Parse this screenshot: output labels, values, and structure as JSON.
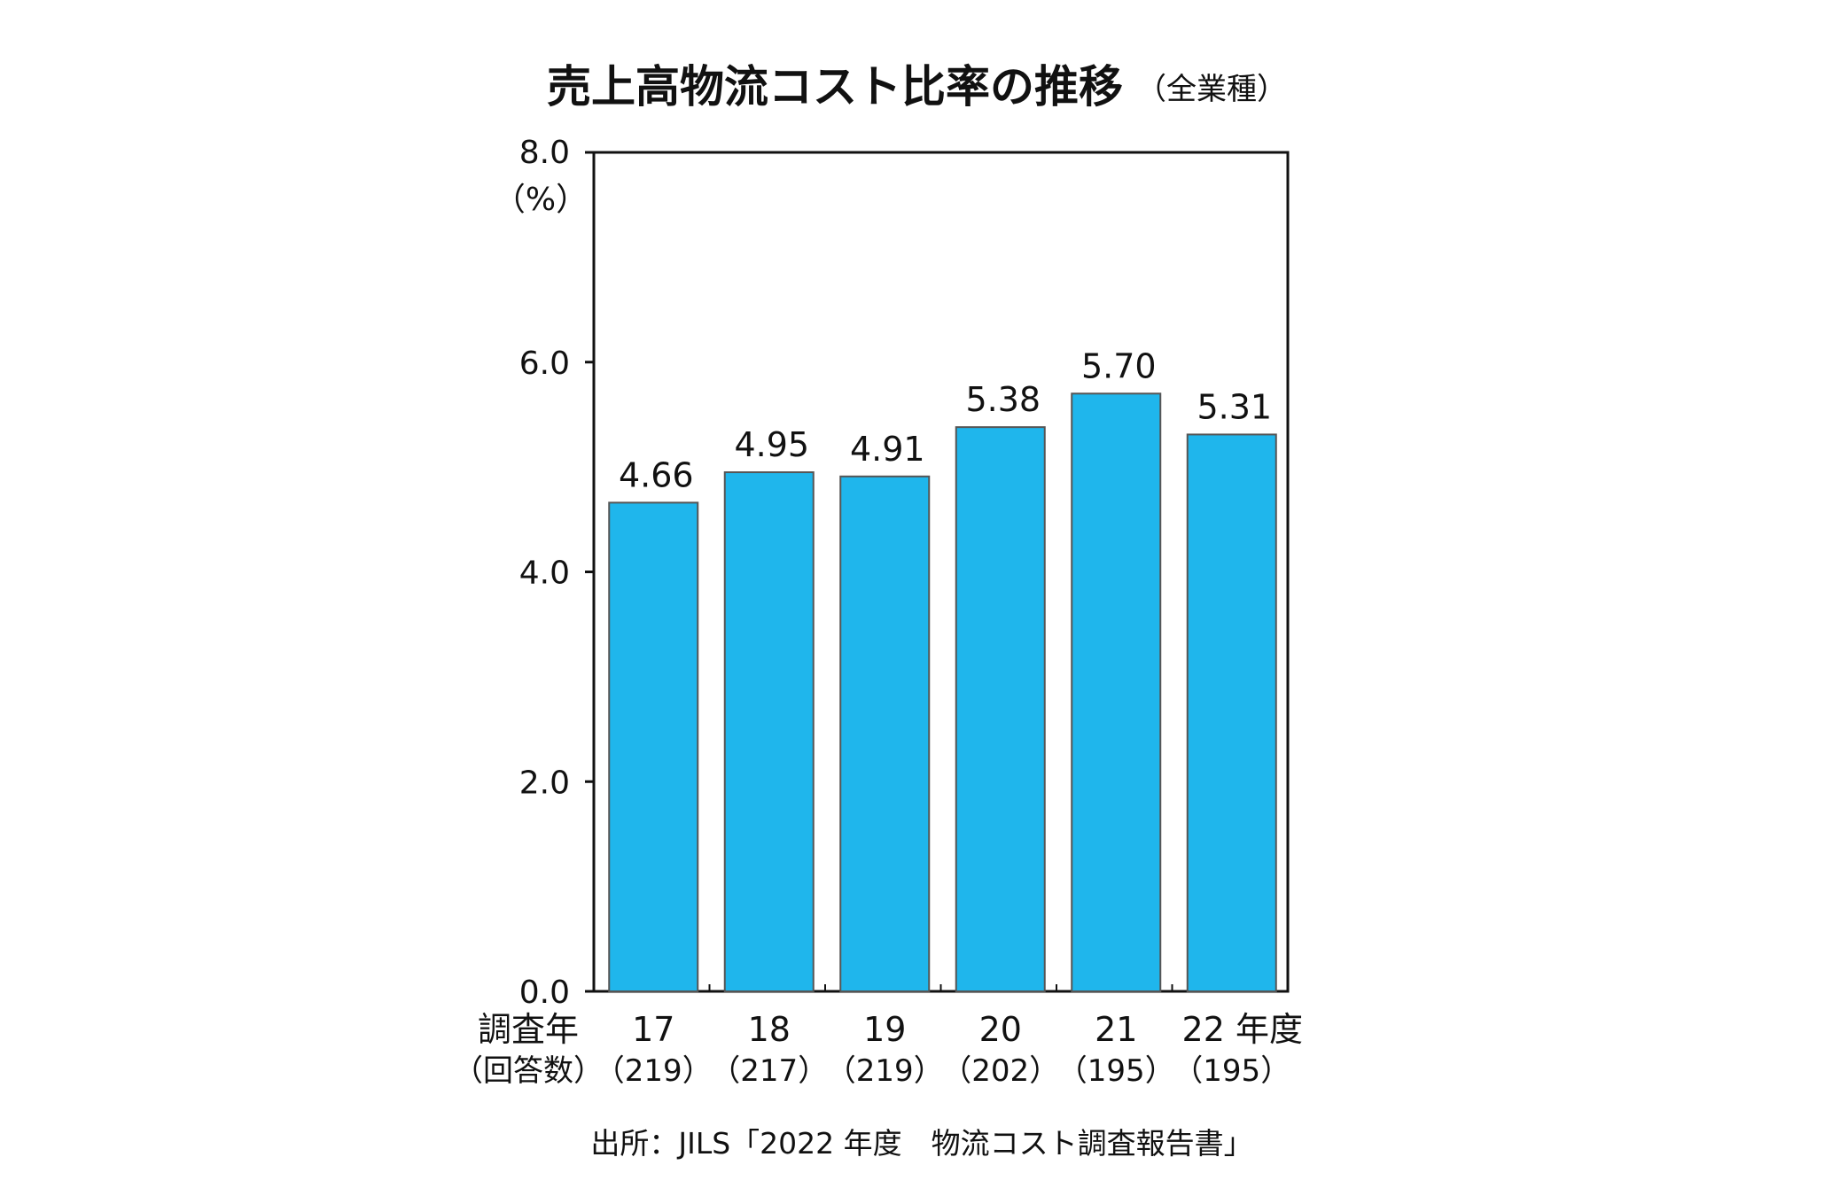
{
  "chart_data": {
    "type": "bar",
    "title": "売上高物流コスト比率の推移",
    "subtitle": "（全業種）",
    "ylabel": "（%）",
    "ylim": [
      0,
      8
    ],
    "yticks": [
      "0.0",
      "2.0",
      "4.0",
      "6.0",
      "8.0"
    ],
    "ytick_values": [
      0,
      2,
      4,
      6,
      8
    ],
    "x_header": [
      "調査年",
      "（回答数）"
    ],
    "categories": [
      "17",
      "18",
      "19",
      "20",
      "21",
      "22 年度"
    ],
    "respondents": [
      "（219）",
      "（217）",
      "（219）",
      "（202）",
      "（195）",
      "（195）"
    ],
    "values": [
      4.66,
      4.95,
      4.91,
      5.38,
      5.7,
      5.31
    ],
    "value_labels": [
      "4.66",
      "4.95",
      "4.91",
      "5.38",
      "5.70",
      "5.31"
    ],
    "bar_color": "#1fb6ec",
    "grid": false,
    "source": "出所：JILS「2022 年度　物流コスト調査報告書」"
  }
}
